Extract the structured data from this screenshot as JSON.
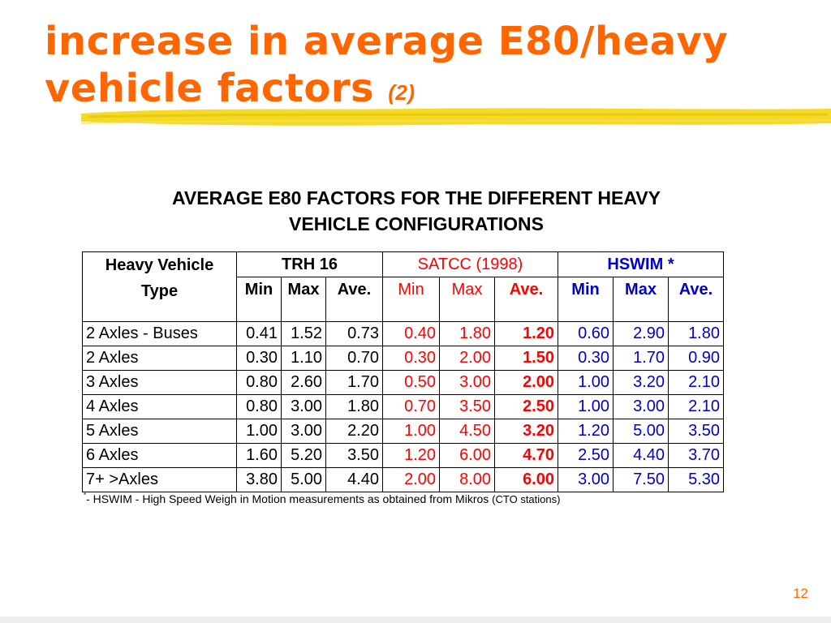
{
  "slide": {
    "title_line1": "increase in average E80/heavy",
    "title_line2": "vehicle factors",
    "title_suffix": "(2)",
    "page_number": "12",
    "accent_color": "#ff6600",
    "brush_color": "#f2d200"
  },
  "table": {
    "heading_line1": "AVERAGE E80 FACTORS FOR THE DIFFERENT HEAVY",
    "heading_line2": "VEHICLE CONFIGURATIONS",
    "type_header_line1": "Heavy Vehicle",
    "type_header_line2": "Type",
    "groups": [
      {
        "name": "TRH 16",
        "color": "#000000"
      },
      {
        "name": "SATCC (1998)",
        "color": "#ff0000"
      },
      {
        "name": "HSWIM *",
        "color": "#0000cc"
      }
    ],
    "sub_headers": [
      "Min",
      "Max",
      "Ave.",
      "Min",
      "Max",
      "Ave.",
      "Min",
      "Max",
      "Ave."
    ],
    "rows": [
      {
        "type": "2 Axles - Buses",
        "values": [
          "0.41",
          "1.52",
          "0.73",
          "0.40",
          "1.80",
          "1.20",
          "0.60",
          "2.90",
          "1.80"
        ]
      },
      {
        "type": "2 Axles",
        "values": [
          "0.30",
          "1.10",
          "0.70",
          "0.30",
          "2.00",
          "1.50",
          "0.30",
          "1.70",
          "0.90"
        ]
      },
      {
        "type": "3 Axles",
        "values": [
          "0.80",
          "2.60",
          "1.70",
          "0.50",
          "3.00",
          "2.00",
          "1.00",
          "3.20",
          "2.10"
        ]
      },
      {
        "type": "4 Axles",
        "values": [
          "0.80",
          "3.00",
          "1.80",
          "0.70",
          "3.50",
          "2.50",
          "1.00",
          "3.00",
          "2.10"
        ]
      },
      {
        "type": "5 Axles",
        "values": [
          "1.00",
          "3.00",
          "2.20",
          "1.00",
          "4.50",
          "3.20",
          "1.20",
          "5.00",
          "3.50"
        ]
      },
      {
        "type": "6 Axles",
        "values": [
          "1.60",
          "5.20",
          "3.50",
          "1.20",
          "6.00",
          "4.70",
          "2.50",
          "4.40",
          "3.70"
        ]
      },
      {
        "type": "7+ >Axles",
        "values": [
          "3.80",
          "5.00",
          "4.40",
          "2.00",
          "8.00",
          "6.00",
          "3.00",
          "7.50",
          "5.30"
        ]
      }
    ],
    "footnote_mark": "*",
    "footnote_text": "- HSWIM - High Speed Weigh in Motion measurements as obtained from Mikros",
    "footnote_small": "(CTO stations)"
  }
}
